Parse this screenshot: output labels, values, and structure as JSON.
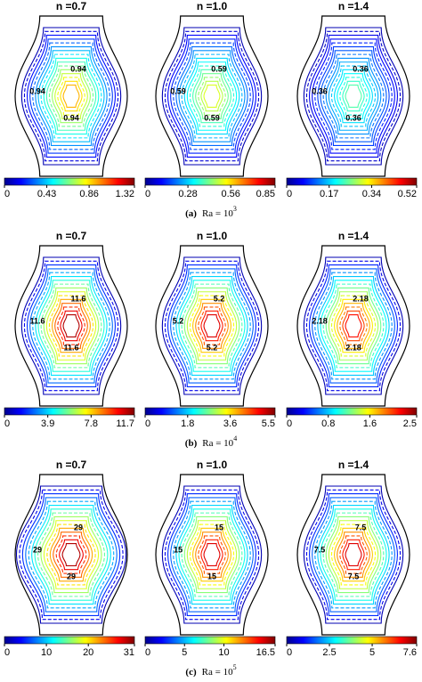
{
  "rows": [
    {
      "panels": [
        {
          "title": "n =0.7",
          "colorbar_ticks": [
            "0",
            "0.43",
            "0.86",
            "1.32"
          ],
          "contour_labels": [
            "0.94",
            "0.94",
            "0.94"
          ]
        },
        {
          "title": "n =1.0",
          "colorbar_ticks": [
            "0",
            "0.28",
            "0.56",
            "0.85"
          ],
          "contour_labels": [
            "0.59",
            "0.59",
            "0.59"
          ]
        },
        {
          "title": "n =1.4",
          "colorbar_ticks": [
            "0",
            "0.17",
            "0.34",
            "0.52"
          ],
          "contour_labels": [
            "0.36",
            "0.36",
            "0.36"
          ]
        }
      ],
      "caption": {
        "label": "(a)",
        "text": "Ra = 10",
        "exponent": "3"
      }
    },
    {
      "panels": [
        {
          "title": "n =0.7",
          "colorbar_ticks": [
            "0",
            "3.9",
            "7.8",
            "11.7"
          ],
          "contour_labels": [
            "11.6",
            "11.6",
            "11.6"
          ]
        },
        {
          "title": "n =1.0",
          "colorbar_ticks": [
            "0",
            "1.8",
            "3.6",
            "5.5"
          ],
          "contour_labels": [
            "5.2",
            "5.2",
            "5.2"
          ]
        },
        {
          "title": "n =1.4",
          "colorbar_ticks": [
            "0",
            "0.8",
            "1.6",
            "2.5"
          ],
          "contour_labels": [
            "2.18",
            "2.18",
            "2.18"
          ]
        }
      ],
      "caption": {
        "label": "(b)",
        "text": "Ra = 10",
        "exponent": "4"
      }
    },
    {
      "panels": [
        {
          "title": "n =0.7",
          "colorbar_ticks": [
            "0",
            "10",
            "20",
            "31"
          ],
          "contour_labels": [
            "29",
            "29",
            "29"
          ]
        },
        {
          "title": "n =1.0",
          "colorbar_ticks": [
            "0",
            "5",
            "10",
            "16.5"
          ],
          "contour_labels": [
            "15",
            "15",
            "15"
          ]
        },
        {
          "title": "n =1.4",
          "colorbar_ticks": [
            "0",
            "2.5",
            "5",
            "7.6"
          ],
          "contour_labels": [
            "7.5",
            "7.5",
            "7.5"
          ]
        }
      ],
      "caption": {
        "label": "(c)",
        "text": "Ra = 10",
        "exponent": "5"
      }
    }
  ]
}
